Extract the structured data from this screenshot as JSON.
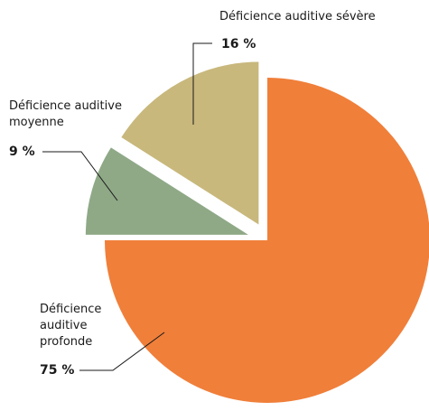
{
  "chart_data": {
    "type": "pie",
    "title": "",
    "legend": "none",
    "slices": [
      {
        "label": "Déficience auditive profonde",
        "value": 75,
        "value_label": "75 %",
        "color": "#f07f3a"
      },
      {
        "label": "Déficience auditive moyenne",
        "value": 9,
        "value_label": "9 %",
        "color": "#8fa987"
      },
      {
        "label": "Déficience auditive sévère",
        "value": 16,
        "value_label": "16 %",
        "color": "#c8b87c"
      }
    ]
  }
}
